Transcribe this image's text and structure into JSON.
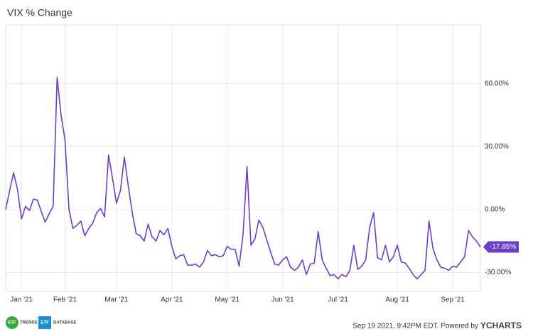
{
  "chart_data": {
    "type": "line",
    "title": "VIX % Change",
    "categories": [
      null,
      null,
      null,
      null,
      "Jan '21",
      null,
      null,
      null,
      null,
      null,
      null,
      null,
      null,
      null,
      null,
      "Feb '21",
      null,
      null,
      null,
      null,
      null,
      null,
      null,
      null,
      null,
      null,
      null,
      null,
      "Mar '21",
      null,
      null,
      null,
      null,
      null,
      null,
      null,
      null,
      null,
      null,
      null,
      null,
      null,
      "Apr '21",
      null,
      null,
      null,
      null,
      null,
      null,
      null,
      null,
      null,
      null,
      null,
      null,
      null,
      "May '21",
      null,
      null,
      null,
      null,
      null,
      null,
      null,
      null,
      null,
      null,
      null,
      null,
      null,
      "Jun '21",
      null,
      null,
      null,
      null,
      null,
      null,
      null,
      null,
      null,
      null,
      null,
      null,
      null,
      "Jul '21",
      null,
      null,
      null,
      null,
      null,
      null,
      null,
      null,
      null,
      null,
      null,
      null,
      null,
      null,
      "Aug '21",
      null,
      null,
      null,
      null,
      null,
      null,
      null,
      null,
      null,
      null,
      null,
      null,
      null,
      "Sep '21",
      null,
      null,
      null,
      null,
      null,
      null,
      null
    ],
    "series": [
      {
        "name": "VIX % Change",
        "color": "#6a3fc8",
        "values": [
          0,
          9,
          17.5,
          9.5,
          -4.5,
          1.5,
          -0.5,
          5,
          4.5,
          -1,
          -6,
          -2,
          1.5,
          63,
          45,
          33,
          0,
          -9,
          -7.5,
          -5.5,
          -12.5,
          -9,
          -6.5,
          -1.5,
          0.5,
          -3.5,
          26,
          15,
          3,
          9,
          25,
          11,
          -1.5,
          -11.5,
          -12.5,
          -15,
          -7,
          -13,
          -15,
          -10,
          -12,
          -9,
          -17.5,
          -23.5,
          -22,
          -21.5,
          -26.5,
          -26.5,
          -26,
          -27.5,
          -25,
          -19.5,
          -22,
          -21.5,
          -22.5,
          -22,
          -17.5,
          -19,
          -19,
          -27,
          -12,
          20.5,
          -17,
          -14,
          -5,
          -8.5,
          -14.5,
          -20.5,
          -26,
          -26.5,
          -24,
          -22.5,
          -27.5,
          -29,
          -27.5,
          -24,
          -31,
          -26,
          -25.5,
          -10.5,
          -24,
          -28,
          -31.5,
          -31,
          -33,
          -31,
          -32,
          -29,
          -17,
          -28.5,
          -27,
          -24,
          -8.5,
          -1.5,
          -23,
          -24,
          -17,
          -25,
          -22.5,
          -17,
          -25,
          -25.5,
          -28,
          -31,
          -33,
          -31,
          -29,
          -5.5,
          -18.5,
          -24,
          -27.5,
          -28,
          -29,
          -27,
          -27.5,
          -25,
          -22.5,
          -10,
          -13,
          -15,
          -17.85
        ],
        "value_labels": [
          null,
          null,
          null,
          null,
          null,
          null,
          null,
          null,
          null,
          null,
          null,
          null,
          null,
          null,
          null,
          null,
          null,
          null,
          null,
          null,
          null,
          null,
          null,
          null,
          null,
          null,
          null,
          null,
          null,
          null,
          null,
          null,
          null,
          null,
          null,
          null,
          null,
          null,
          null,
          null,
          null,
          null,
          null,
          null,
          null,
          null,
          null,
          null,
          null,
          null,
          null,
          null,
          null,
          null,
          null,
          null,
          null,
          null,
          null,
          null,
          null,
          null,
          null,
          null,
          null,
          null,
          null,
          null,
          null,
          null,
          null,
          null,
          null,
          null,
          null,
          null,
          null,
          null,
          null,
          null,
          null,
          null,
          null,
          null,
          null,
          null,
          null,
          null,
          null,
          null,
          null,
          null,
          null,
          null,
          null,
          null,
          null,
          null,
          null,
          null,
          null,
          null,
          null,
          null,
          null,
          null,
          null,
          null,
          null,
          null,
          null,
          null,
          null,
          null,
          null,
          null,
          null,
          null,
          null,
          null,
          "-17.85%"
        ]
      }
    ],
    "ylim": [
      -39,
      88
    ],
    "yticks": [
      {
        "value": -30,
        "label": "-30.00%"
      },
      {
        "value": 0,
        "label": "0.00%"
      },
      {
        "value": 30,
        "label": "30.00%"
      },
      {
        "value": 60,
        "label": "60.00%"
      }
    ],
    "grid": true
  },
  "footer": {
    "logos": [
      {
        "badge": "ETF",
        "text": "TRENDS"
      },
      {
        "badge": "ETF",
        "text": "DATABASE"
      }
    ],
    "timestamp": "Sep 19 2021, 9:42PM EDT. Powered by",
    "brand": "YCHARTS"
  }
}
